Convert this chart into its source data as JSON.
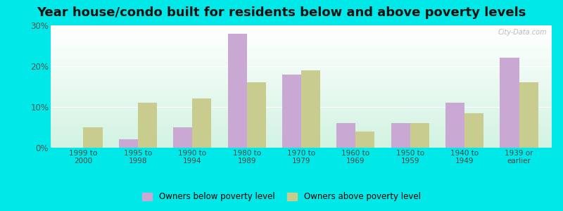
{
  "title": "Year house/condo built for residents below and above poverty levels",
  "categories": [
    "1999 to\n2000",
    "1995 to\n1998",
    "1990 to\n1994",
    "1980 to\n1989",
    "1970 to\n1979",
    "1960 to\n1969",
    "1950 to\n1959",
    "1940 to\n1949",
    "1939 or\nearlier"
  ],
  "below_poverty": [
    0.0,
    2.0,
    5.0,
    28.0,
    18.0,
    6.0,
    6.0,
    11.0,
    22.0
  ],
  "above_poverty": [
    5.0,
    11.0,
    12.0,
    16.0,
    19.0,
    4.0,
    6.0,
    8.5,
    16.0
  ],
  "below_color": "#c9a8d4",
  "above_color": "#c8cc8e",
  "ylim": [
    0,
    30
  ],
  "yticks": [
    0,
    10,
    20,
    30
  ],
  "ytick_labels": [
    "0%",
    "10%",
    "20%",
    "30%"
  ],
  "legend_below": "Owners below poverty level",
  "legend_above": "Owners above poverty level",
  "outer_bg": "#00e8e8",
  "title_fontsize": 13,
  "bar_width": 0.35
}
